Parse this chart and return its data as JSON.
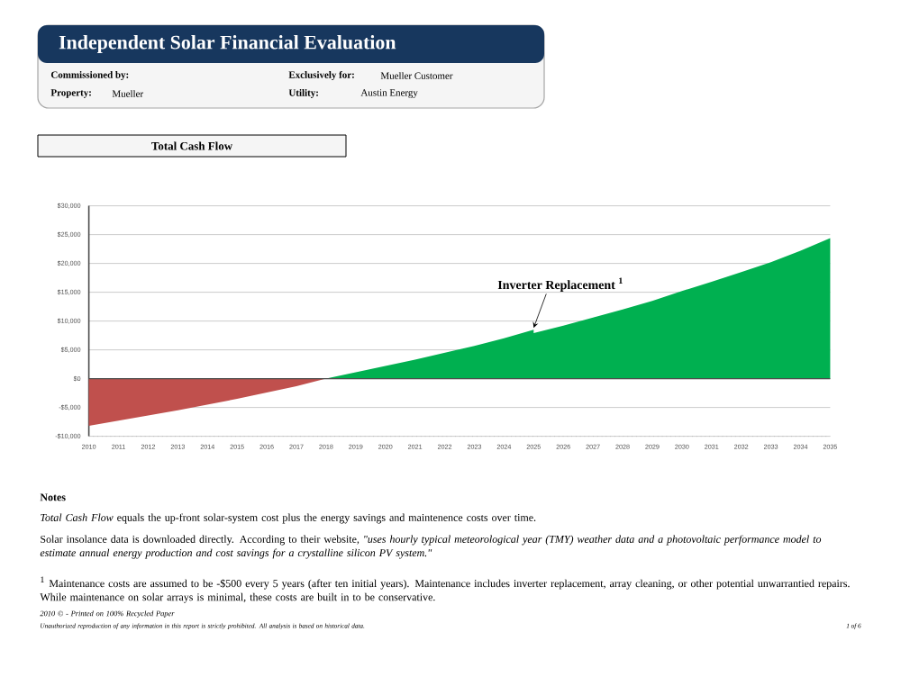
{
  "chart_data": {
    "type": "area",
    "title": "Independent Solar Financial Evaluation",
    "subtitle": "Total Cash Flow",
    "series": [
      {
        "color": "#c0504d",
        "x": [
          2010,
          2011,
          2012,
          2013,
          2014,
          2015,
          2016,
          2017,
          2018
        ],
        "values": [
          -8200,
          -7300,
          -6400,
          -5500,
          -4500,
          -3500,
          -2400,
          -1300,
          0
        ]
      },
      {
        "color": "#00b050",
        "x": [
          2018,
          2019,
          2020,
          2021,
          2022,
          2023,
          2024,
          2025,
          2025,
          2026,
          2027,
          2028,
          2029,
          2030,
          2031,
          2032,
          2033,
          2034,
          2035
        ],
        "values": [
          0,
          1100,
          2200,
          3300,
          4500,
          5700,
          7000,
          8500,
          7900,
          9200,
          10600,
          12000,
          13500,
          15200,
          16800,
          18500,
          20200,
          22200,
          24400
        ]
      }
    ],
    "xlim": [
      2010,
      2035
    ],
    "xticks": [
      2010,
      2011,
      2012,
      2013,
      2014,
      2015,
      2016,
      2017,
      2018,
      2019,
      2020,
      2021,
      2022,
      2023,
      2024,
      2025,
      2026,
      2027,
      2028,
      2029,
      2030,
      2031,
      2032,
      2033,
      2034,
      2035
    ],
    "ylim": [
      -10000,
      30000
    ],
    "yticks": [
      {
        "value": -10000,
        "label": "-$10,000"
      },
      {
        "value": -5000,
        "label": "-$5,000"
      },
      {
        "value": 0,
        "label": "$0"
      },
      {
        "value": 5000,
        "label": "$5,000"
      },
      {
        "value": 10000,
        "label": "$10,000"
      },
      {
        "value": 15000,
        "label": "$15,000"
      },
      {
        "value": 20000,
        "label": "$20,000"
      },
      {
        "value": 25000,
        "label": "$25,000"
      },
      {
        "value": 30000,
        "label": "$30,000"
      }
    ],
    "grid": "y",
    "annotations": [
      "Commissioned by:",
      "Exclusively for:",
      "Mueller Customer",
      "Property:",
      "Mueller",
      "Utility:",
      "Austin Energy",
      {
        "text": "Inverter Replacement $^{1}$",
        "x": 2025,
        "y": 8500
      },
      "Notes",
      "*Total Cash Flow* equals the up-front solar-system cost plus the energy savings and maintenence costs over time.",
      "Solar insolance data is downloaded directly. According to their website, *\"uses hourly typical meteorological year (TMY) weather data and a photovoltaic performance model to estimate annual energy production and cost savings for a crystalline silicon PV system.\"*",
      "$^{1}$ Maintenance costs are assumed to be -$500 every 5 years (after ten initial years). Maintenance includes inverter replacement, array cleaning, or other potential unwarrantied repairs.  While maintenance on solar arrays is minimal, these costs are built in to be conservative.",
      "2010 © - Printed on 100% Recycled Paper",
      "Unauthorized reproduction of any information in this report is strictly prohibited. All analysis is based on historical data.",
      "1 of 6"
    ]
  }
}
